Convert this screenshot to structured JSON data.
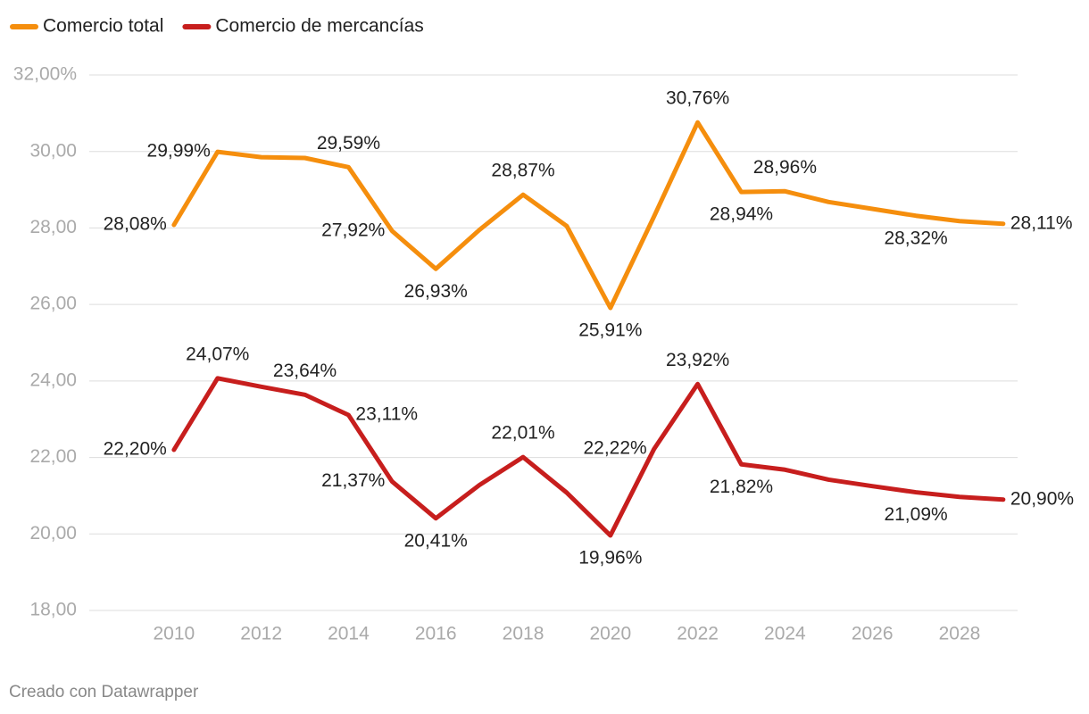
{
  "chart_data": {
    "type": "line",
    "x": [
      2010,
      2011,
      2012,
      2013,
      2014,
      2015,
      2016,
      2017,
      2018,
      2019,
      2020,
      2021,
      2022,
      2023,
      2024,
      2025,
      2026,
      2027,
      2028,
      2029
    ],
    "series": [
      {
        "name": "Comercio total",
        "color": "#f58e0d",
        "values": [
          28.08,
          29.99,
          29.85,
          29.83,
          29.59,
          27.92,
          26.93,
          27.95,
          28.87,
          28.05,
          25.91,
          28.3,
          30.76,
          28.94,
          28.96,
          28.68,
          28.5,
          28.32,
          28.18,
          28.11
        ],
        "value_labels": [
          "28,08%",
          "29,99%",
          null,
          null,
          "29,59%",
          "27,92%",
          "26,93%",
          null,
          "28,87%",
          null,
          "25,91%",
          null,
          "30,76%",
          "28,94%",
          "28,96%",
          null,
          null,
          "28,32%",
          null,
          "28,11%"
        ]
      },
      {
        "name": "Comercio de mercancías",
        "color": "#c71e1d",
        "values": [
          22.2,
          24.07,
          23.85,
          23.64,
          23.11,
          21.37,
          20.41,
          21.28,
          22.01,
          21.08,
          19.96,
          22.22,
          23.92,
          21.82,
          21.68,
          21.42,
          21.25,
          21.09,
          20.97,
          20.9
        ],
        "value_labels": [
          "22,20%",
          "24,07%",
          null,
          "23,64%",
          "23,11%",
          "21,37%",
          "20,41%",
          null,
          "22,01%",
          null,
          "19,96%",
          "22,22%",
          "23,92%",
          "21,82%",
          null,
          null,
          null,
          "21,09%",
          null,
          "20,90%"
        ]
      }
    ],
    "xlim": [
      2008.06,
      2029.33
    ],
    "xticks": [
      2010,
      2012,
      2014,
      2016,
      2018,
      2020,
      2022,
      2024,
      2026,
      2028
    ],
    "ylim": [
      18,
      32
    ],
    "yticks": [
      {
        "value": 18,
        "label": "18,00"
      },
      {
        "value": 20,
        "label": "20,00"
      },
      {
        "value": 22,
        "label": "22,00"
      },
      {
        "value": 24,
        "label": "24,00"
      },
      {
        "value": 26,
        "label": "26,00"
      },
      {
        "value": 28,
        "label": "28,00"
      },
      {
        "value": 30,
        "label": "30,00"
      },
      {
        "value": 32,
        "label": "32,00%"
      }
    ],
    "grid": true,
    "legend": "top-left",
    "footer": "Creado con Datawrapper"
  }
}
